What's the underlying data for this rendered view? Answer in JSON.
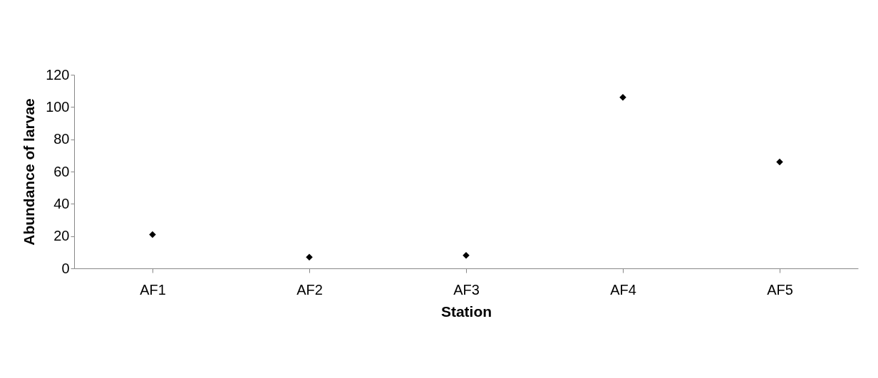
{
  "chart_data": {
    "type": "scatter",
    "xlabel": "Station",
    "ylabel": "Abundance of larvae",
    "categories": [
      "AF1",
      "AF2",
      "AF3",
      "AF4",
      "AF5"
    ],
    "series": [
      {
        "color": "#000000",
        "values": [
          21,
          7,
          8,
          106,
          66
        ]
      }
    ],
    "ylim": [
      0,
      120
    ],
    "yticks": [
      0,
      20,
      40,
      60,
      80,
      100,
      120
    ],
    "grid": false,
    "legend": false,
    "marker": "diamond"
  }
}
